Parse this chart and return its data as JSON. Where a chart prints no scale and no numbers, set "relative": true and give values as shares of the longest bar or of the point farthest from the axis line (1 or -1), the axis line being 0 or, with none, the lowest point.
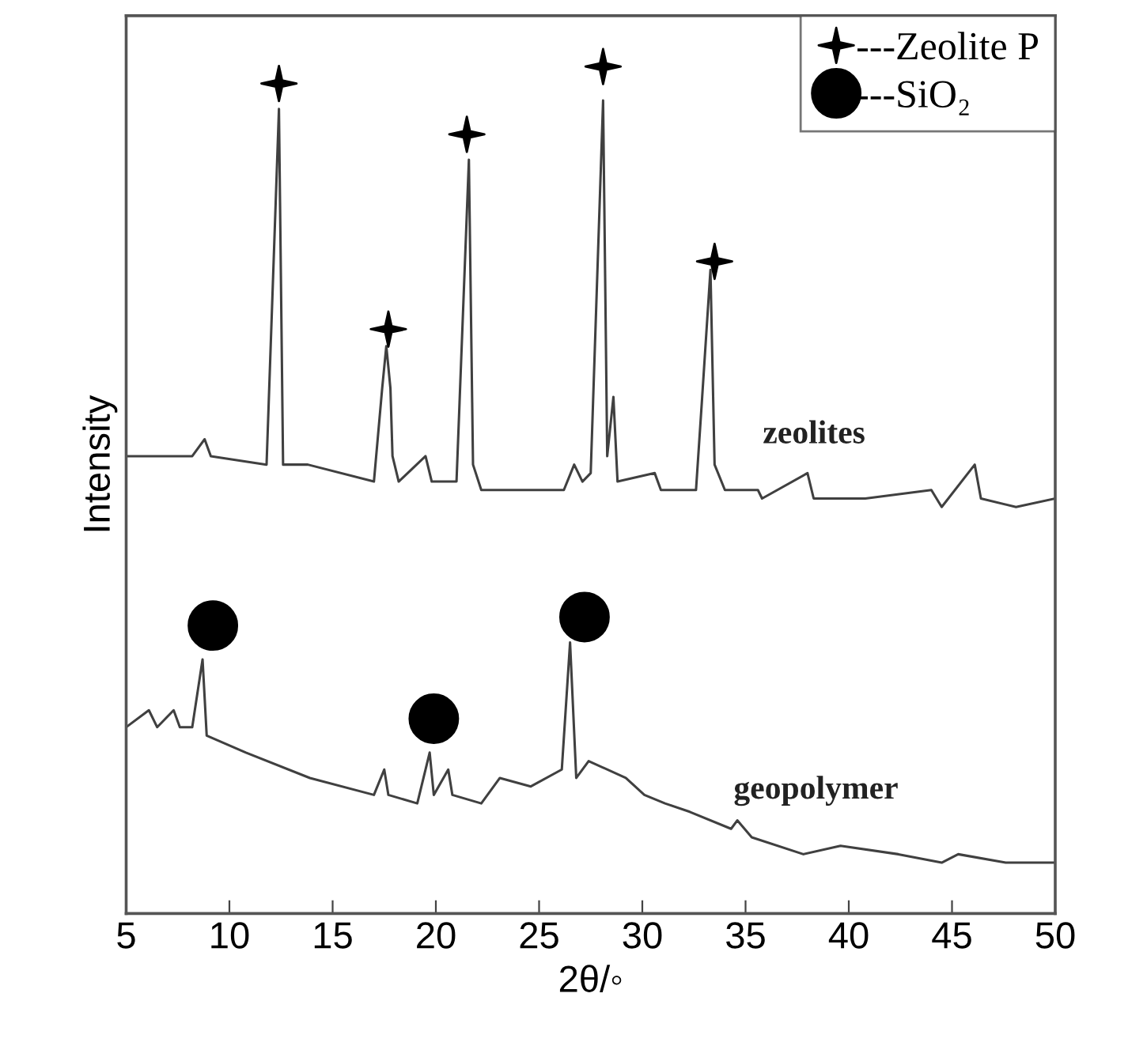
{
  "chart_data": {
    "type": "line",
    "xlabel": "2θ/◦",
    "ylabel": "Intensity",
    "relative": true,
    "xlim": [
      5,
      50
    ],
    "xticks": [
      5,
      10,
      15,
      20,
      25,
      30,
      35,
      40,
      45,
      50
    ],
    "tick_labels": "x",
    "grid": false,
    "legend": "top right",
    "series": [
      {
        "name": "zeolites",
        "color": "#404040",
        "x": [
          5.0,
          8.2,
          8.8,
          9.1,
          11.8,
          12.4,
          12.6,
          13.8,
          17.0,
          17.4,
          17.6,
          17.8,
          17.9,
          18.2,
          19.5,
          19.8,
          21.0,
          21.6,
          21.8,
          22.2,
          26.2,
          26.7,
          27.1,
          27.5,
          28.1,
          28.3,
          28.6,
          28.8,
          30.6,
          30.9,
          32.6,
          32.9,
          33.3,
          33.5,
          34.0,
          35.6,
          35.8,
          38.0,
          38.3,
          40.8,
          44.0,
          44.5,
          46.1,
          46.4,
          48.1,
          50.0
        ],
        "values": [
          0.54,
          0.54,
          0.56,
          0.54,
          0.53,
          0.95,
          0.53,
          0.53,
          0.51,
          0.62,
          0.67,
          0.62,
          0.54,
          0.51,
          0.54,
          0.51,
          0.51,
          0.89,
          0.53,
          0.5,
          0.5,
          0.53,
          0.51,
          0.52,
          0.96,
          0.54,
          0.61,
          0.51,
          0.52,
          0.5,
          0.5,
          0.61,
          0.76,
          0.53,
          0.5,
          0.5,
          0.49,
          0.52,
          0.49,
          0.49,
          0.5,
          0.48,
          0.53,
          0.49,
          0.48,
          0.49
        ]
      },
      {
        "name": "geopolymer",
        "color": "#404040",
        "x": [
          5.0,
          6.1,
          6.5,
          7.3,
          7.6,
          8.2,
          8.7,
          8.9,
          10.8,
          13.9,
          17.0,
          17.5,
          17.7,
          19.1,
          19.7,
          19.9,
          20.6,
          20.8,
          22.2,
          23.1,
          24.6,
          26.1,
          26.5,
          26.8,
          27.4,
          29.2,
          30.1,
          31.1,
          32.3,
          34.3,
          34.6,
          35.3,
          37.8,
          39.6,
          42.4,
          44.5,
          45.3,
          47.6,
          50.0
        ],
        "values": [
          0.22,
          0.24,
          0.22,
          0.24,
          0.22,
          0.22,
          0.3,
          0.21,
          0.19,
          0.16,
          0.14,
          0.17,
          0.14,
          0.13,
          0.19,
          0.14,
          0.17,
          0.14,
          0.13,
          0.16,
          0.15,
          0.17,
          0.32,
          0.16,
          0.18,
          0.16,
          0.14,
          0.13,
          0.12,
          0.1,
          0.11,
          0.09,
          0.07,
          0.08,
          0.07,
          0.06,
          0.07,
          0.06,
          0.06
        ]
      },
      {
        "name": "---Zeolite P",
        "type": "scatter",
        "marker": "star",
        "color": "#000000",
        "x": [
          12.4,
          17.7,
          21.5,
          28.1,
          33.5
        ],
        "values": [
          0.98,
          0.69,
          0.92,
          1.0,
          0.77
        ]
      },
      {
        "name": "---SiO₂",
        "type": "scatter",
        "marker": "circle",
        "color": "#000000",
        "x": [
          9.2,
          19.9,
          27.2
        ],
        "values": [
          0.34,
          0.23,
          0.35
        ]
      }
    ]
  }
}
